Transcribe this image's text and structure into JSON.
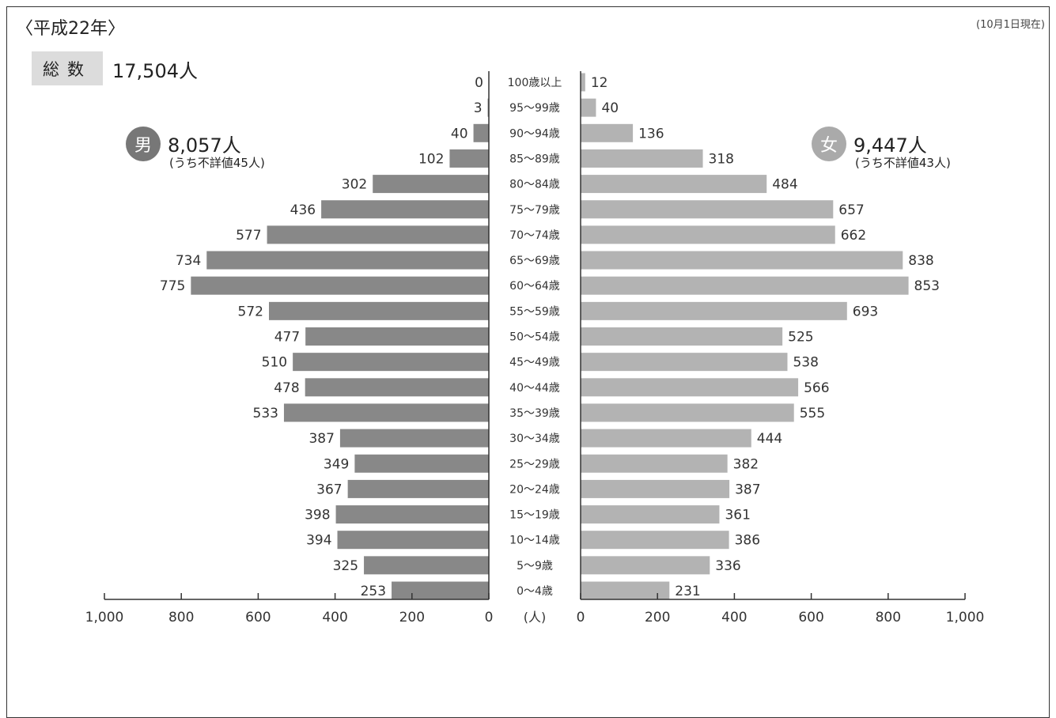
{
  "header": {
    "title": "〈平成22年〉",
    "date_note": "(10月1日現在)"
  },
  "total": {
    "label": "総数",
    "value": "17,504人"
  },
  "male": {
    "badge": "男",
    "total": "8,057人",
    "note": "(うち不詳値45人)",
    "color": "#888888"
  },
  "female": {
    "badge": "女",
    "total": "9,447人",
    "note": "(うち不詳値43人)",
    "color": "#b3b3b3"
  },
  "chart_data": {
    "type": "bar",
    "orientation": "horizontal-pyramid",
    "unit_label": "(人)",
    "xlim": [
      0,
      1000
    ],
    "x_ticks": [
      "1,000",
      "800",
      "600",
      "400",
      "200",
      "0"
    ],
    "x_tick_values": [
      1000,
      800,
      600,
      400,
      200,
      0
    ],
    "categories": [
      "100歳以上",
      "95〜99歳",
      "90〜94歳",
      "85〜89歳",
      "80〜84歳",
      "75〜79歳",
      "70〜74歳",
      "65〜69歳",
      "60〜64歳",
      "55〜59歳",
      "50〜54歳",
      "45〜49歳",
      "40〜44歳",
      "35〜39歳",
      "30〜34歳",
      "25〜29歳",
      "20〜24歳",
      "15〜19歳",
      "10〜14歳",
      "5〜9歳",
      "0〜4歳"
    ],
    "series": [
      {
        "name": "男",
        "values": [
          0,
          3,
          40,
          102,
          302,
          436,
          577,
          734,
          775,
          572,
          477,
          510,
          478,
          533,
          387,
          349,
          367,
          398,
          394,
          325,
          253
        ]
      },
      {
        "name": "女",
        "values": [
          12,
          40,
          136,
          318,
          484,
          657,
          662,
          838,
          853,
          693,
          525,
          538,
          566,
          555,
          444,
          382,
          387,
          361,
          386,
          336,
          231
        ]
      }
    ]
  }
}
